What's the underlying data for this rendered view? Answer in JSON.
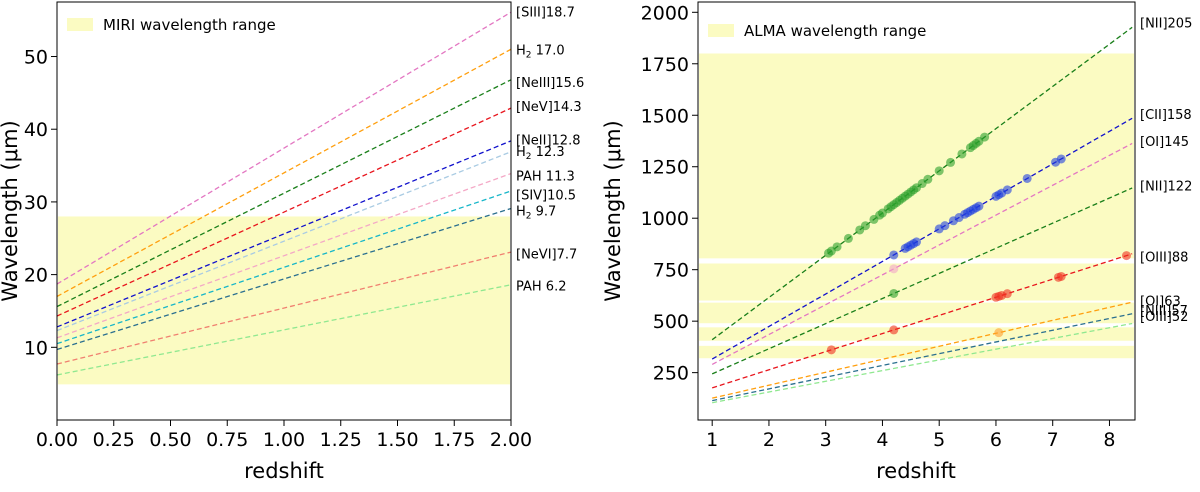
{
  "chart_data": [
    {
      "type": "line",
      "title": "",
      "xlabel": "redshift",
      "ylabel": "Wavelength (μm)",
      "xlim": [
        0,
        2
      ],
      "ylim": [
        0,
        57.5
      ],
      "xticks": [
        0,
        0.25,
        0.5,
        0.75,
        1.0,
        1.25,
        1.5,
        1.75,
        2.0
      ],
      "xtick_labels": [
        "0.00",
        "0.25",
        "0.50",
        "0.75",
        "1.00",
        "1.25",
        "1.50",
        "1.75",
        "2.00"
      ],
      "yticks": [
        10,
        20,
        30,
        40,
        50
      ],
      "ytick_labels": [
        "10",
        "20",
        "30",
        "40",
        "50"
      ],
      "legend": {
        "label": "MIRI wavelength range",
        "color": "#fbfbc2",
        "placement": "top-left"
      },
      "bands": [
        {
          "ymin": 4.9,
          "ymax": 28.0
        }
      ],
      "series": [
        {
          "name": "[SIII]18.7",
          "rest": 18.7,
          "color": "#e377c2"
        },
        {
          "name": "H₂ 17.0",
          "rest": 17.0,
          "color": "#ff9f0e"
        },
        {
          "name": "[NeIII]15.6",
          "rest": 15.6,
          "color": "#1a7f1a"
        },
        {
          "name": "[NeV]14.3",
          "rest": 14.3,
          "color": "#e8151d"
        },
        {
          "name": "[NeII]12.8",
          "rest": 12.8,
          "color": "#1111cc"
        },
        {
          "name": "H₂ 12.3",
          "rest": 12.3,
          "color": "#a9cbe3"
        },
        {
          "name": "PAH 11.3",
          "rest": 11.3,
          "color": "#f4a8c6"
        },
        {
          "name": "[SIV]10.5",
          "rest": 10.5,
          "color": "#17b6c9"
        },
        {
          "name": "H₂ 9.7",
          "rest": 9.7,
          "color": "#2a6f8f"
        },
        {
          "name": "[NeVI]7.7",
          "rest": 7.7,
          "color": "#f08070"
        },
        {
          "name": "PAH 6.2",
          "rest": 6.2,
          "color": "#90e890"
        }
      ],
      "series_label_values": [
        56.2,
        51.0,
        46.5,
        43.2,
        38.6,
        37.0,
        33.6,
        31.0,
        28.8,
        22.9,
        18.5
      ]
    },
    {
      "type": "line",
      "title": "",
      "xlabel": "redshift",
      "ylabel": "Wavelength (μm)",
      "xlim": [
        0.75,
        8.45
      ],
      "ylim": [
        20,
        2050
      ],
      "xticks": [
        1,
        2,
        3,
        4,
        5,
        6,
        7,
        8
      ],
      "xtick_labels": [
        "1",
        "2",
        "3",
        "4",
        "5",
        "6",
        "7",
        "8"
      ],
      "yticks": [
        250,
        500,
        750,
        1000,
        1250,
        1500,
        1750,
        2000
      ],
      "ytick_labels": [
        "250",
        "500",
        "750",
        "1000",
        "1250",
        "1500",
        "1750",
        "2000"
      ],
      "legend": {
        "label": "ALMA wavelength range",
        "color": "#fbfbc2",
        "placement": "top-left"
      },
      "bands": [
        {
          "ymin": 320,
          "ymax": 380
        },
        {
          "ymin": 405,
          "ymax": 470
        },
        {
          "ymin": 490,
          "ymax": 590
        },
        {
          "ymin": 600,
          "ymax": 780
        },
        {
          "ymin": 805,
          "ymax": 1800
        }
      ],
      "series": [
        {
          "name": "[NII]205",
          "rest": 205,
          "color": "#1a7f1a"
        },
        {
          "name": "[CII]158",
          "rest": 158,
          "color": "#1111cc"
        },
        {
          "name": "[OI]145",
          "rest": 145,
          "color": "#e377c2"
        },
        {
          "name": "[NII]122",
          "rest": 122,
          "color": "#1a7f1a"
        },
        {
          "name": "[OIII]88",
          "rest": 88,
          "color": "#e8151d"
        },
        {
          "name": "[OI]63",
          "rest": 63,
          "color": "#ff9f0e"
        },
        {
          "name": "[NIII]57",
          "rest": 57,
          "color": "#2a6f8f"
        },
        {
          "name": "[OIII]52",
          "rest": 52,
          "color": "#90e890"
        }
      ],
      "series_label_values": [
        1950,
        1505,
        1375,
        1160,
        815,
        600,
        555,
        525
      ],
      "points": [
        {
          "series": 0,
          "color": "#2ca02c",
          "z": [
            3.05,
            3.1,
            3.2,
            3.4,
            3.6,
            3.7,
            3.85,
            3.95,
            4.0,
            4.1,
            4.15,
            4.2,
            4.25,
            4.3,
            4.35,
            4.4,
            4.45,
            4.5,
            4.55,
            4.6,
            4.7,
            4.8,
            5.0,
            5.2,
            5.4,
            5.55,
            5.6,
            5.65,
            5.7,
            5.8
          ]
        },
        {
          "series": 1,
          "color": "#1f3fe0",
          "z": [
            4.2,
            4.4,
            4.45,
            4.5,
            4.55,
            4.6,
            5.0,
            5.1,
            5.25,
            5.35,
            5.45,
            5.5,
            5.55,
            5.6,
            5.65,
            5.7,
            6.0,
            6.05,
            6.1,
            6.2,
            6.55,
            7.05,
            7.15
          ]
        },
        {
          "series": 2,
          "color": "#f4a8c6",
          "z": [
            4.2
          ]
        },
        {
          "series": 3,
          "color": "#2ca02c",
          "z": [
            4.2
          ]
        },
        {
          "series": 4,
          "color": "#f03020",
          "z": [
            3.1,
            4.2,
            6.0,
            6.05,
            6.1,
            6.2,
            7.1,
            7.15,
            8.3
          ]
        },
        {
          "series": 5,
          "color": "#ffa030",
          "z": [
            6.05
          ]
        }
      ]
    }
  ]
}
